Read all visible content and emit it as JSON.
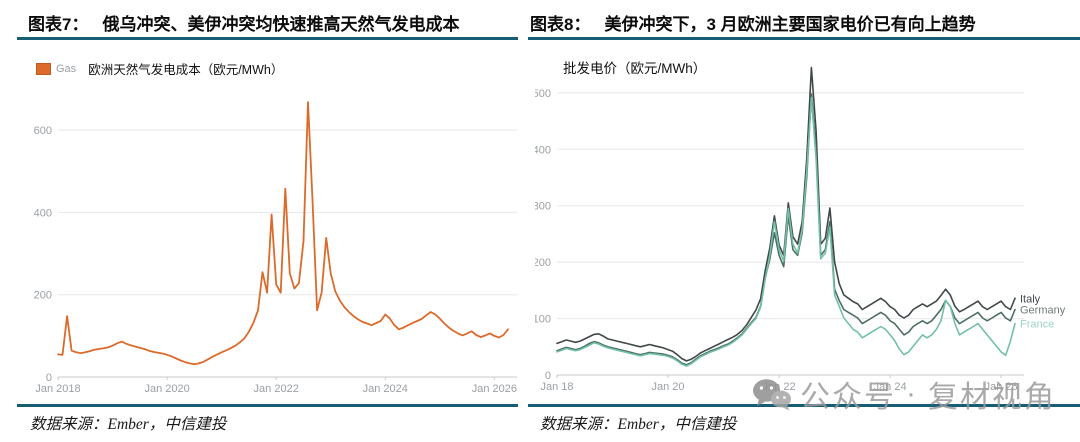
{
  "theme": {
    "accent": "#155E76",
    "background": "#FFFFFF",
    "grid_color": "#E8E8E8",
    "axis_line_color": "#C9C9C9",
    "axis_label_color": "#9BA0A4",
    "watermark_color": "#9B9B9B"
  },
  "watermark": {
    "icon": "wechat-icon",
    "prefix": "公众号",
    "separator": "·",
    "suffix": "复材视角"
  },
  "panels": [
    {
      "title_label": "图表7：",
      "title_text": "俄乌冲突、美伊冲突均快速推高天然气发电成本",
      "source_text": "数据来源：Ember，中信建投",
      "legend": {
        "series_tag": "Gas",
        "label": "欧洲天然气发电成本（欧元/MWh）",
        "swatch_color": "#DC6A2A"
      },
      "chart_data": {
        "type": "line",
        "title": "欧洲天然气发电成本（欧元/MWh）",
        "x_start": "Jan 2018",
        "x_interval": "monthly",
        "x_tick_months": [
          0,
          24,
          48,
          72,
          96
        ],
        "x_tick_labels": [
          "Jan 2018",
          "Jan 2020",
          "Jan 2022",
          "Jan 2024",
          "Jan 2026"
        ],
        "ylim": [
          0,
          700
        ],
        "y_ticks": [
          0,
          200,
          400,
          600
        ],
        "grid": true,
        "end_labels": false,
        "series": [
          {
            "name": "Gas",
            "color": "#DC6A2A",
            "values": [
              55,
              54,
              148,
              64,
              60,
              58,
              60,
              63,
              66,
              68,
              70,
              72,
              76,
              82,
              86,
              81,
              77,
              74,
              71,
              68,
              64,
              61,
              59,
              57,
              54,
              50,
              45,
              40,
              36,
              33,
              31,
              33,
              37,
              43,
              49,
              55,
              60,
              65,
              70,
              76,
              84,
              94,
              110,
              132,
              162,
              255,
              205,
              395,
              225,
              205,
              458,
              252,
              215,
              228,
              330,
              668,
              430,
              162,
              205,
              338,
              252,
              208,
              186,
              170,
              158,
              148,
              140,
              134,
              130,
              126,
              131,
              136,
              152,
              142,
              126,
              116,
              120,
              126,
              131,
              136,
              141,
              150,
              158,
              152,
              142,
              130,
              120,
              112,
              106,
              101,
              106,
              111,
              102,
              97,
              101,
              106,
              100,
              96,
              102,
              116
            ]
          }
        ]
      }
    },
    {
      "title_label": "图表8：",
      "title_text": "美伊冲突下，3 月欧洲主要国家电价已有向上趋势",
      "source_text": "数据来源：Ember，中信建投",
      "header_label": "批发电价（欧元/MWh）",
      "chart_data": {
        "type": "line",
        "title": "批发电价（欧元/MWh）",
        "x_start": "Jan 2018",
        "x_interval": "monthly",
        "x_tick_months": [
          0,
          24,
          48,
          72,
          96
        ],
        "x_tick_labels": [
          "Jan 18",
          "Jan 20",
          "Jan 22",
          "Jan 24",
          "Jan 26"
        ],
        "ylim": [
          0,
          560
        ],
        "y_ticks": [
          0,
          100,
          200,
          300,
          400,
          500
        ],
        "grid": true,
        "end_labels": true,
        "series": [
          {
            "name": "Italy",
            "color": "#41484A",
            "label_color": "#41484A",
            "values": [
              56,
              59,
              62,
              60,
              58,
              60,
              64,
              68,
              72,
              73,
              69,
              64,
              62,
              60,
              58,
              56,
              54,
              52,
              50,
              52,
              54,
              52,
              50,
              48,
              45,
              42,
              36,
              29,
              25,
              28,
              33,
              39,
              43,
              47,
              51,
              55,
              59,
              63,
              67,
              72,
              79,
              89,
              102,
              115,
              135,
              185,
              225,
              282,
              230,
              212,
              305,
              245,
              232,
              272,
              385,
              545,
              432,
              232,
              242,
              296,
              200,
              162,
              142,
              136,
              130,
              126,
              116,
              121,
              126,
              131,
              136,
              130,
              121,
              116,
              106,
              101,
              106,
              116,
              121,
              126,
              121,
              126,
              131,
              141,
              152,
              142,
              122,
              112,
              116,
              121,
              126,
              131,
              121,
              116,
              121,
              126,
              131,
              121,
              116,
              136
            ]
          },
          {
            "name": "Germany",
            "color": "#4C6E64",
            "label_color": "#6E7B76",
            "values": [
              43,
              46,
              49,
              47,
              45,
              47,
              51,
              56,
              59,
              57,
              53,
              50,
              48,
              46,
              44,
              42,
              40,
              38,
              36,
              38,
              40,
              39,
              38,
              37,
              35,
              32,
              27,
              21,
              18,
              22,
              28,
              34,
              38,
              42,
              45,
              48,
              52,
              55,
              60,
              66,
              73,
              83,
              93,
              102,
              122,
              172,
              205,
              252,
              212,
              192,
              282,
              222,
              212,
              252,
              352,
              498,
              398,
              212,
              222,
              272,
              152,
              132,
              116,
              111,
              106,
              101,
              91,
              96,
              101,
              106,
              111,
              106,
              96,
              91,
              81,
              71,
              76,
              86,
              91,
              96,
              91,
              96,
              106,
              116,
              132,
              122,
              101,
              91,
              96,
              101,
              106,
              111,
              101,
              96,
              101,
              106,
              111,
              101,
              96,
              116
            ]
          },
          {
            "name": "France",
            "color": "#72C0A7",
            "label_color": "#9ED4C2",
            "values": [
              41,
              44,
              47,
              45,
              43,
              45,
              49,
              53,
              57,
              55,
              51,
              48,
              46,
              44,
              42,
              40,
              38,
              36,
              34,
              36,
              38,
              37,
              36,
              35,
              33,
              30,
              25,
              19,
              16,
              20,
              26,
              32,
              36,
              40,
              43,
              46,
              50,
              53,
              58,
              64,
              71,
              81,
              91,
              100,
              120,
              170,
              212,
              272,
              222,
              202,
              295,
              232,
              216,
              258,
              362,
              492,
              382,
              206,
              216,
              262,
              142,
              122,
              101,
              91,
              81,
              76,
              66,
              71,
              76,
              81,
              86,
              81,
              71,
              61,
              46,
              36,
              41,
              51,
              61,
              71,
              66,
              71,
              81,
              96,
              132,
              122,
              91,
              71,
              76,
              81,
              86,
              91,
              81,
              71,
              61,
              51,
              41,
              35,
              60,
              91
            ]
          }
        ]
      }
    }
  ]
}
